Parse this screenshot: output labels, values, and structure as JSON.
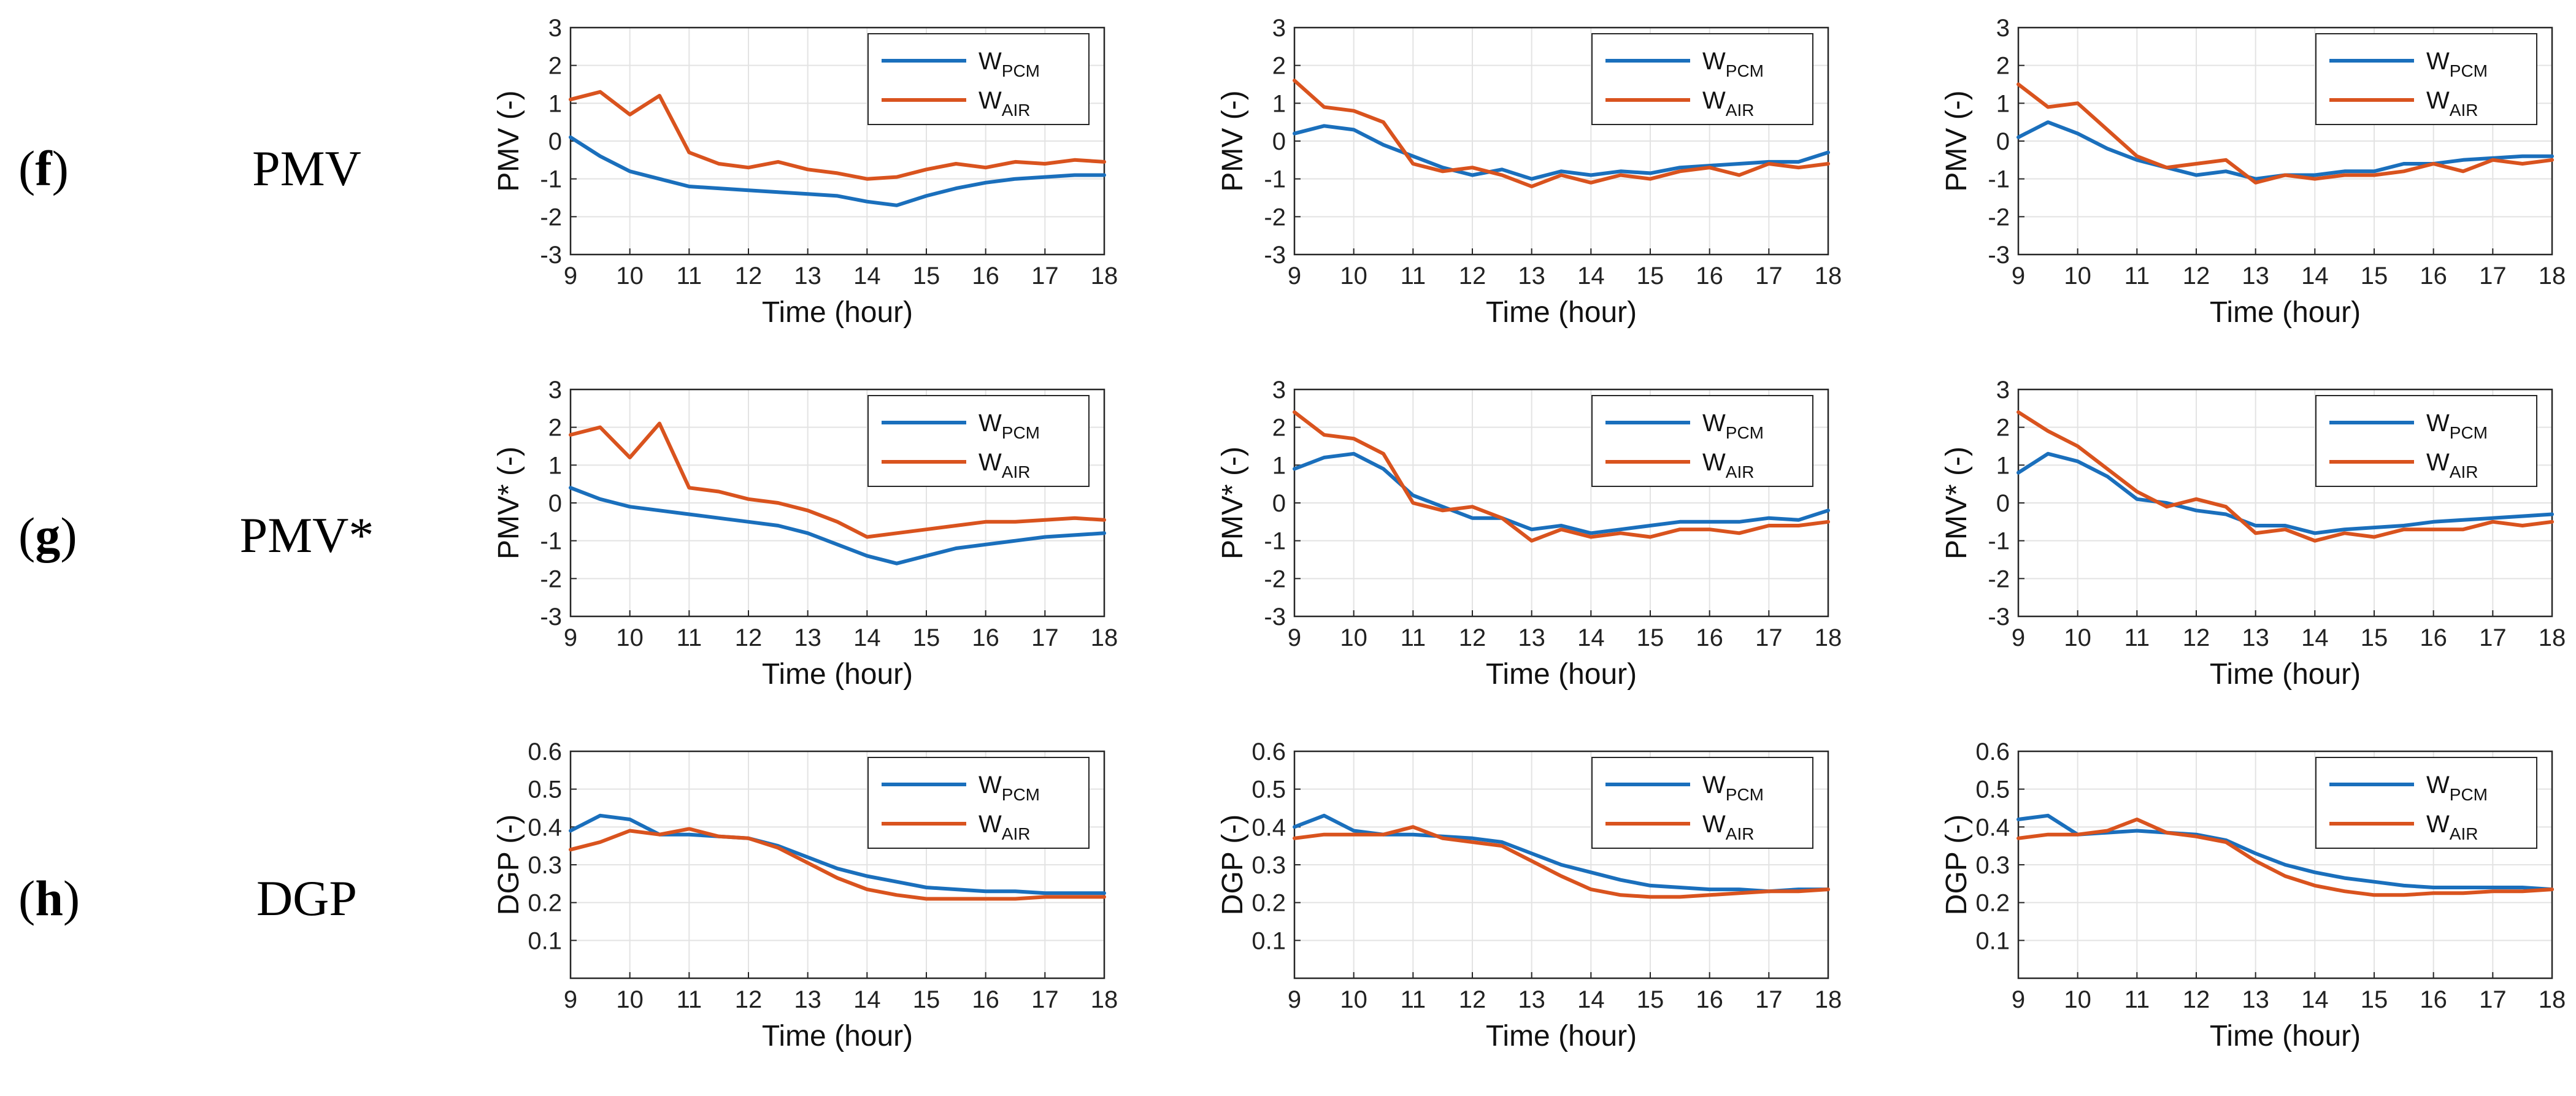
{
  "colors": {
    "pcm": "#1a6fbc",
    "air": "#d9531e",
    "grid": "#e3e3e3",
    "axis": "#262626"
  },
  "rows": [
    {
      "id": "f",
      "letter": "f",
      "name": "PMV"
    },
    {
      "id": "g",
      "letter": "g",
      "name": "PMV*"
    },
    {
      "id": "h",
      "letter": "h",
      "name": "DGP"
    }
  ],
  "legend": {
    "pcm_main": "W",
    "pcm_sub": "PCM",
    "air_main": "W",
    "air_sub": "AIR"
  },
  "chart_data": [
    {
      "type": "line",
      "row": "f",
      "col": 1,
      "ylabel": "PMV (-)",
      "xlabel": "Time (hour)",
      "xlim": [
        9,
        18
      ],
      "ylim": [
        -3,
        3
      ],
      "xticks": [
        "9",
        "10",
        "11",
        "12",
        "13",
        "14",
        "15",
        "16",
        "17",
        "18"
      ],
      "yticks": [
        "-3",
        "-2",
        "-1",
        "0",
        "1",
        "2",
        "3"
      ],
      "x": [
        9,
        9.5,
        10,
        10.5,
        11,
        11.5,
        12,
        12.5,
        13,
        13.5,
        14,
        14.5,
        15,
        15.5,
        16,
        16.5,
        17,
        17.5,
        18
      ],
      "series": [
        {
          "name": "W_PCM",
          "values": [
            0.1,
            -0.4,
            -0.8,
            -1.0,
            -1.2,
            -1.25,
            -1.3,
            -1.35,
            -1.4,
            -1.45,
            -1.6,
            -1.7,
            -1.45,
            -1.25,
            -1.1,
            -1.0,
            -0.95,
            -0.9,
            -0.9
          ]
        },
        {
          "name": "W_AIR",
          "values": [
            1.1,
            1.3,
            0.7,
            1.2,
            -0.3,
            -0.6,
            -0.7,
            -0.55,
            -0.75,
            -0.85,
            -1.0,
            -0.95,
            -0.75,
            -0.6,
            -0.7,
            -0.55,
            -0.6,
            -0.5,
            -0.55
          ]
        }
      ]
    },
    {
      "type": "line",
      "row": "f",
      "col": 2,
      "ylabel": "PMV (-)",
      "xlabel": "Time (hour)",
      "xlim": [
        9,
        18
      ],
      "ylim": [
        -3,
        3
      ],
      "xticks": [
        "9",
        "10",
        "11",
        "12",
        "13",
        "14",
        "15",
        "16",
        "17",
        "18"
      ],
      "yticks": [
        "-3",
        "-2",
        "-1",
        "0",
        "1",
        "2",
        "3"
      ],
      "x": [
        9,
        9.5,
        10,
        10.5,
        11,
        11.5,
        12,
        12.5,
        13,
        13.5,
        14,
        14.5,
        15,
        15.5,
        16,
        16.5,
        17,
        17.5,
        18
      ],
      "series": [
        {
          "name": "W_PCM",
          "values": [
            0.2,
            0.4,
            0.3,
            -0.1,
            -0.4,
            -0.7,
            -0.9,
            -0.75,
            -1.0,
            -0.8,
            -0.9,
            -0.8,
            -0.85,
            -0.7,
            -0.65,
            -0.6,
            -0.55,
            -0.55,
            -0.3
          ]
        },
        {
          "name": "W_AIR",
          "values": [
            1.6,
            0.9,
            0.8,
            0.5,
            -0.6,
            -0.8,
            -0.7,
            -0.9,
            -1.2,
            -0.9,
            -1.1,
            -0.9,
            -1.0,
            -0.8,
            -0.7,
            -0.9,
            -0.6,
            -0.7,
            -0.6
          ]
        }
      ]
    },
    {
      "type": "line",
      "row": "f",
      "col": 3,
      "ylabel": "PMV (-)",
      "xlabel": "Time (hour)",
      "xlim": [
        9,
        18
      ],
      "ylim": [
        -3,
        3
      ],
      "xticks": [
        "9",
        "10",
        "11",
        "12",
        "13",
        "14",
        "15",
        "16",
        "17",
        "18"
      ],
      "yticks": [
        "-3",
        "-2",
        "-1",
        "0",
        "1",
        "2",
        "3"
      ],
      "x": [
        9,
        9.5,
        10,
        10.5,
        11,
        11.5,
        12,
        12.5,
        13,
        13.5,
        14,
        14.5,
        15,
        15.5,
        16,
        16.5,
        17,
        17.5,
        18
      ],
      "series": [
        {
          "name": "W_PCM",
          "values": [
            0.1,
            0.5,
            0.2,
            -0.2,
            -0.5,
            -0.7,
            -0.9,
            -0.8,
            -1.0,
            -0.9,
            -0.9,
            -0.8,
            -0.8,
            -0.6,
            -0.6,
            -0.5,
            -0.45,
            -0.4,
            -0.4
          ]
        },
        {
          "name": "W_AIR",
          "values": [
            1.5,
            0.9,
            1.0,
            0.3,
            -0.4,
            -0.7,
            -0.6,
            -0.5,
            -1.1,
            -0.9,
            -1.0,
            -0.9,
            -0.9,
            -0.8,
            -0.6,
            -0.8,
            -0.5,
            -0.6,
            -0.5
          ]
        }
      ]
    },
    {
      "type": "line",
      "row": "g",
      "col": 1,
      "ylabel": "PMV* (-)",
      "xlabel": "Time (hour)",
      "xlim": [
        9,
        18
      ],
      "ylim": [
        -3,
        3
      ],
      "xticks": [
        "9",
        "10",
        "11",
        "12",
        "13",
        "14",
        "15",
        "16",
        "17",
        "18"
      ],
      "yticks": [
        "-3",
        "-2",
        "-1",
        "0",
        "1",
        "2",
        "3"
      ],
      "x": [
        9,
        9.5,
        10,
        10.5,
        11,
        11.5,
        12,
        12.5,
        13,
        13.5,
        14,
        14.5,
        15,
        15.5,
        16,
        16.5,
        17,
        17.5,
        18
      ],
      "series": [
        {
          "name": "W_PCM",
          "values": [
            0.4,
            0.1,
            -0.1,
            -0.2,
            -0.3,
            -0.4,
            -0.5,
            -0.6,
            -0.8,
            -1.1,
            -1.4,
            -1.6,
            -1.4,
            -1.2,
            -1.1,
            -1.0,
            -0.9,
            -0.85,
            -0.8
          ]
        },
        {
          "name": "W_AIR",
          "values": [
            1.8,
            2.0,
            1.2,
            2.1,
            0.4,
            0.3,
            0.1,
            0.0,
            -0.2,
            -0.5,
            -0.9,
            -0.8,
            -0.7,
            -0.6,
            -0.5,
            -0.5,
            -0.45,
            -0.4,
            -0.45
          ]
        }
      ]
    },
    {
      "type": "line",
      "row": "g",
      "col": 2,
      "ylabel": "PMV* (-)",
      "xlabel": "Time (hour)",
      "xlim": [
        9,
        18
      ],
      "ylim": [
        -3,
        3
      ],
      "xticks": [
        "9",
        "10",
        "11",
        "12",
        "13",
        "14",
        "15",
        "16",
        "17",
        "18"
      ],
      "yticks": [
        "-3",
        "-2",
        "-1",
        "0",
        "1",
        "2",
        "3"
      ],
      "x": [
        9,
        9.5,
        10,
        10.5,
        11,
        11.5,
        12,
        12.5,
        13,
        13.5,
        14,
        14.5,
        15,
        15.5,
        16,
        16.5,
        17,
        17.5,
        18
      ],
      "series": [
        {
          "name": "W_PCM",
          "values": [
            0.9,
            1.2,
            1.3,
            0.9,
            0.2,
            -0.1,
            -0.4,
            -0.4,
            -0.7,
            -0.6,
            -0.8,
            -0.7,
            -0.6,
            -0.5,
            -0.5,
            -0.5,
            -0.4,
            -0.45,
            -0.2
          ]
        },
        {
          "name": "W_AIR",
          "values": [
            2.4,
            1.8,
            1.7,
            1.3,
            0.0,
            -0.2,
            -0.1,
            -0.4,
            -1.0,
            -0.7,
            -0.9,
            -0.8,
            -0.9,
            -0.7,
            -0.7,
            -0.8,
            -0.6,
            -0.6,
            -0.5
          ]
        }
      ]
    },
    {
      "type": "line",
      "row": "g",
      "col": 3,
      "ylabel": "PMV* (-)",
      "xlabel": "Time (hour)",
      "xlim": [
        9,
        18
      ],
      "ylim": [
        -3,
        3
      ],
      "xticks": [
        "9",
        "10",
        "11",
        "12",
        "13",
        "14",
        "15",
        "16",
        "17",
        "18"
      ],
      "yticks": [
        "-3",
        "-2",
        "-1",
        "0",
        "1",
        "2",
        "3"
      ],
      "x": [
        9,
        9.5,
        10,
        10.5,
        11,
        11.5,
        12,
        12.5,
        13,
        13.5,
        14,
        14.5,
        15,
        15.5,
        16,
        16.5,
        17,
        17.5,
        18
      ],
      "series": [
        {
          "name": "W_PCM",
          "values": [
            0.8,
            1.3,
            1.1,
            0.7,
            0.1,
            0.0,
            -0.2,
            -0.3,
            -0.6,
            -0.6,
            -0.8,
            -0.7,
            -0.65,
            -0.6,
            -0.5,
            -0.45,
            -0.4,
            -0.35,
            -0.3
          ]
        },
        {
          "name": "W_AIR",
          "values": [
            2.4,
            1.9,
            1.5,
            0.9,
            0.3,
            -0.1,
            0.1,
            -0.1,
            -0.8,
            -0.7,
            -1.0,
            -0.8,
            -0.9,
            -0.7,
            -0.7,
            -0.7,
            -0.5,
            -0.6,
            -0.5
          ]
        }
      ]
    },
    {
      "type": "line",
      "row": "h",
      "col": 1,
      "ylabel": "DGP (-)",
      "xlabel": "Time (hour)",
      "xlim": [
        9,
        18
      ],
      "ylim": [
        0,
        0.6
      ],
      "xticks": [
        "9",
        "10",
        "11",
        "12",
        "13",
        "14",
        "15",
        "16",
        "17",
        "18"
      ],
      "yticks": [
        "0.1",
        "0.2",
        "0.3",
        "0.4",
        "0.5",
        "0.6"
      ],
      "x": [
        9,
        9.5,
        10,
        10.5,
        11,
        11.5,
        12,
        12.5,
        13,
        13.5,
        14,
        14.5,
        15,
        15.5,
        16,
        16.5,
        17,
        17.5,
        18
      ],
      "series": [
        {
          "name": "W_PCM",
          "values": [
            0.39,
            0.43,
            0.42,
            0.38,
            0.38,
            0.375,
            0.37,
            0.35,
            0.32,
            0.29,
            0.27,
            0.255,
            0.24,
            0.235,
            0.23,
            0.23,
            0.225,
            0.225,
            0.225
          ]
        },
        {
          "name": "W_AIR",
          "values": [
            0.34,
            0.36,
            0.39,
            0.38,
            0.395,
            0.375,
            0.37,
            0.345,
            0.305,
            0.265,
            0.235,
            0.22,
            0.21,
            0.21,
            0.21,
            0.21,
            0.215,
            0.215,
            0.215
          ]
        }
      ]
    },
    {
      "type": "line",
      "row": "h",
      "col": 2,
      "ylabel": "DGP (-)",
      "xlabel": "Time (hour)",
      "xlim": [
        9,
        18
      ],
      "ylim": [
        0,
        0.6
      ],
      "xticks": [
        "9",
        "10",
        "11",
        "12",
        "13",
        "14",
        "15",
        "16",
        "17",
        "18"
      ],
      "yticks": [
        "0.1",
        "0.2",
        "0.3",
        "0.4",
        "0.5",
        "0.6"
      ],
      "x": [
        9,
        9.5,
        10,
        10.5,
        11,
        11.5,
        12,
        12.5,
        13,
        13.5,
        14,
        14.5,
        15,
        15.5,
        16,
        16.5,
        17,
        17.5,
        18
      ],
      "series": [
        {
          "name": "W_PCM",
          "values": [
            0.4,
            0.43,
            0.39,
            0.38,
            0.38,
            0.375,
            0.37,
            0.36,
            0.33,
            0.3,
            0.28,
            0.26,
            0.245,
            0.24,
            0.235,
            0.235,
            0.23,
            0.235,
            0.235
          ]
        },
        {
          "name": "W_AIR",
          "values": [
            0.37,
            0.38,
            0.38,
            0.38,
            0.4,
            0.37,
            0.36,
            0.35,
            0.31,
            0.27,
            0.235,
            0.22,
            0.215,
            0.215,
            0.22,
            0.225,
            0.23,
            0.23,
            0.235
          ]
        }
      ]
    },
    {
      "type": "line",
      "row": "h",
      "col": 3,
      "ylabel": "DGP (-)",
      "xlabel": "Time (hour)",
      "xlim": [
        9,
        18
      ],
      "ylim": [
        0,
        0.6
      ],
      "xticks": [
        "9",
        "10",
        "11",
        "12",
        "13",
        "14",
        "15",
        "16",
        "17",
        "18"
      ],
      "yticks": [
        "0.1",
        "0.2",
        "0.3",
        "0.4",
        "0.5",
        "0.6"
      ],
      "x": [
        9,
        9.5,
        10,
        10.5,
        11,
        11.5,
        12,
        12.5,
        13,
        13.5,
        14,
        14.5,
        15,
        15.5,
        16,
        16.5,
        17,
        17.5,
        18
      ],
      "series": [
        {
          "name": "W_PCM",
          "values": [
            0.42,
            0.43,
            0.38,
            0.385,
            0.39,
            0.385,
            0.38,
            0.365,
            0.33,
            0.3,
            0.28,
            0.265,
            0.255,
            0.245,
            0.24,
            0.24,
            0.24,
            0.24,
            0.235
          ]
        },
        {
          "name": "W_AIR",
          "values": [
            0.37,
            0.38,
            0.38,
            0.39,
            0.42,
            0.385,
            0.375,
            0.36,
            0.31,
            0.27,
            0.245,
            0.23,
            0.22,
            0.22,
            0.225,
            0.225,
            0.23,
            0.23,
            0.235
          ]
        }
      ]
    }
  ]
}
